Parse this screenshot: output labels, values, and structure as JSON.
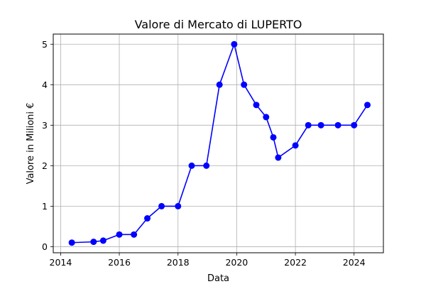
{
  "chart_data": {
    "type": "line",
    "title": "Valore di Mercato di LUPERTO",
    "xlabel": "Data",
    "ylabel": "Valore in Milioni €",
    "x_axis_type": "date",
    "xlim": [
      "2013-10-01",
      "2024-12-31"
    ],
    "ylim": [
      -0.15,
      5.25
    ],
    "x_ticks": [
      {
        "label": "2014",
        "value": "2014-01-01"
      },
      {
        "label": "2016",
        "value": "2016-01-01"
      },
      {
        "label": "2018",
        "value": "2018-01-01"
      },
      {
        "label": "2020",
        "value": "2020-01-01"
      },
      {
        "label": "2022",
        "value": "2022-01-01"
      },
      {
        "label": "2024",
        "value": "2024-01-01"
      }
    ],
    "y_ticks": [
      {
        "label": "0",
        "value": 0
      },
      {
        "label": "1",
        "value": 1
      },
      {
        "label": "2",
        "value": 2
      },
      {
        "label": "3",
        "value": 3
      },
      {
        "label": "4",
        "value": 4
      },
      {
        "label": "5",
        "value": 5
      }
    ],
    "grid": true,
    "legend": "none",
    "series": [
      {
        "color": "#0000ff",
        "marker": "circle",
        "points": [
          {
            "x": "2014-05-20",
            "y": 0.1
          },
          {
            "x": "2015-02-15",
            "y": 0.12
          },
          {
            "x": "2015-06-15",
            "y": 0.15
          },
          {
            "x": "2016-01-01",
            "y": 0.3
          },
          {
            "x": "2016-07-01",
            "y": 0.3
          },
          {
            "x": "2016-12-15",
            "y": 0.7
          },
          {
            "x": "2017-06-10",
            "y": 1.0
          },
          {
            "x": "2018-01-01",
            "y": 1.0
          },
          {
            "x": "2018-06-20",
            "y": 2.0
          },
          {
            "x": "2018-12-20",
            "y": 2.0
          },
          {
            "x": "2019-06-01",
            "y": 4.0
          },
          {
            "x": "2019-12-01",
            "y": 5.0
          },
          {
            "x": "2020-04-01",
            "y": 4.0
          },
          {
            "x": "2020-09-01",
            "y": 3.5
          },
          {
            "x": "2021-01-01",
            "y": 3.2
          },
          {
            "x": "2021-04-01",
            "y": 2.7
          },
          {
            "x": "2021-06-01",
            "y": 2.2
          },
          {
            "x": "2022-01-01",
            "y": 2.5
          },
          {
            "x": "2022-06-10",
            "y": 3.0
          },
          {
            "x": "2022-11-15",
            "y": 3.0
          },
          {
            "x": "2023-06-15",
            "y": 3.0
          },
          {
            "x": "2024-01-01",
            "y": 3.0
          },
          {
            "x": "2024-06-15",
            "y": 3.5
          }
        ]
      }
    ]
  }
}
